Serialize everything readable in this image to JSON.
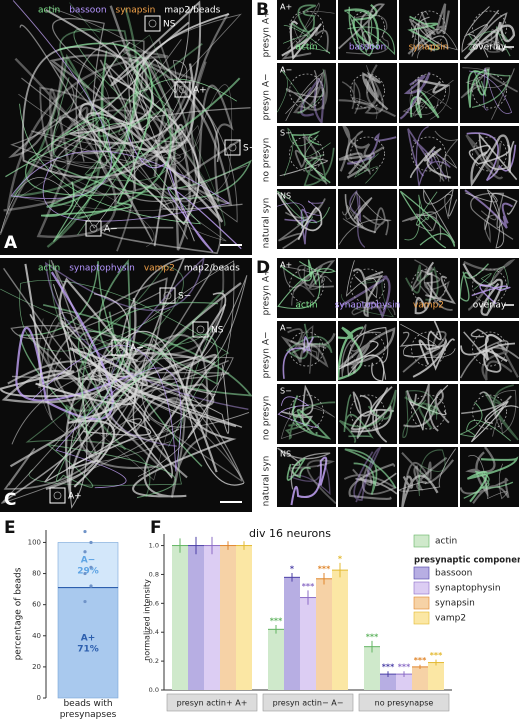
{
  "panel_a": {
    "letter": "A",
    "channels": [
      {
        "text": "actin",
        "color": "#7fe08c"
      },
      {
        "text": "bassoon",
        "color": "#b596ff"
      },
      {
        "text": "synapsin",
        "color": "#f2a24a"
      },
      {
        "text": "map2/beads",
        "color": "#ffffff"
      }
    ],
    "boxes": [
      "NS",
      "A+",
      "S−",
      "A−"
    ]
  },
  "panel_b": {
    "letter": "B",
    "columns": [
      {
        "text": "actin",
        "color": "#7fe08c"
      },
      {
        "text": "bassoon",
        "color": "#b596ff"
      },
      {
        "text": "synapsin",
        "color": "#f2a24a"
      },
      {
        "text": "overlay",
        "color": "#ffffff"
      }
    ],
    "rows": [
      {
        "label": "presyn A+",
        "tag": "A+"
      },
      {
        "label": "presyn A−",
        "tag": "A−"
      },
      {
        "label": "no presyn",
        "tag": "S−"
      },
      {
        "label": "natural syn",
        "tag": "NS"
      }
    ]
  },
  "panel_c": {
    "letter": "C",
    "channels": [
      {
        "text": "actin",
        "color": "#7fe08c"
      },
      {
        "text": "synaptophysin",
        "color": "#b596ff"
      },
      {
        "text": "vamp2",
        "color": "#f2a24a"
      },
      {
        "text": "map2/beads",
        "color": "#ffffff"
      }
    ],
    "boxes": [
      "S−",
      "NS",
      "A−",
      "A+"
    ]
  },
  "panel_d": {
    "letter": "D",
    "columns": [
      {
        "text": "actin",
        "color": "#7fe08c"
      },
      {
        "text": "synaptophysin",
        "color": "#b596ff"
      },
      {
        "text": "vamp2",
        "color": "#f2a24a"
      },
      {
        "text": "overlay",
        "color": "#ffffff"
      }
    ],
    "rows": [
      {
        "label": "presyn A+",
        "tag": "A+"
      },
      {
        "label": "presyn A−",
        "tag": "A−"
      },
      {
        "label": "no presyn",
        "tag": "S−"
      },
      {
        "label": "natural syn",
        "tag": "NS"
      }
    ]
  },
  "chart_data": [
    {
      "letter": "E",
      "type": "stacked-bar",
      "ylabel": "percentage of beads",
      "categories": [
        "beads with presynapses"
      ],
      "series": [
        {
          "name": "A+",
          "color": "#a9c9ee",
          "label_color": "#2d5fae",
          "values": [
            71
          ],
          "value_labels": [
            "71%"
          ]
        },
        {
          "name": "A−",
          "color": "#d3e7fa",
          "label_color": "#5ea4e4",
          "values": [
            29
          ],
          "value_labels": [
            "29%"
          ]
        }
      ],
      "points": [
        107,
        100,
        94,
        84,
        80,
        72,
        62
      ],
      "point_color": "#6f93c8",
      "ylim": [
        0,
        108
      ],
      "yticks": [
        0,
        20,
        40,
        60,
        80,
        100
      ]
    },
    {
      "letter": "F",
      "type": "grouped-bar",
      "title": "div 16 neurons",
      "ylabel": "normalized intensity",
      "categories": [
        "presyn actin+ A+",
        "presyn actin− A−",
        "no presynapse"
      ],
      "legend_heading": "presynaptic components",
      "series": [
        {
          "name": "actin",
          "color": "#cfe9cb",
          "edge": "#62b462",
          "values": [
            1.0,
            0.42,
            0.3
          ],
          "errors": [
            0.05,
            0.03,
            0.04
          ],
          "significance": [
            null,
            "***",
            "***"
          ]
        },
        {
          "name": "bassoon",
          "color": "#b7aee3",
          "edge": "#4b3fa6",
          "values": [
            1.0,
            0.78,
            0.11
          ],
          "errors": [
            0.06,
            0.03,
            0.02
          ],
          "significance": [
            null,
            "*",
            "***"
          ]
        },
        {
          "name": "synaptophysin",
          "color": "#dccdf3",
          "edge": "#8b6cc6",
          "values": [
            1.0,
            0.64,
            0.11
          ],
          "errors": [
            0.06,
            0.05,
            0.02
          ],
          "significance": [
            null,
            "***",
            "***"
          ]
        },
        {
          "name": "synapsin",
          "color": "#f6d2a6",
          "edge": "#e0862c",
          "values": [
            1.0,
            0.77,
            0.16
          ],
          "errors": [
            0.03,
            0.04,
            0.015
          ],
          "significance": [
            null,
            "***",
            "***"
          ]
        },
        {
          "name": "vamp2",
          "color": "#fbe7a4",
          "edge": "#e3b930",
          "values": [
            1.0,
            0.83,
            0.19
          ],
          "errors": [
            0.03,
            0.05,
            0.02
          ],
          "significance": [
            null,
            "*",
            "***"
          ]
        }
      ],
      "ylim": [
        0,
        1.08
      ],
      "yticks": [
        {
          "value": 0,
          "label": "0.0"
        },
        0.2,
        0.4,
        0.6,
        0.8,
        {
          "value": 1,
          "label": "1.0"
        }
      ]
    }
  ]
}
